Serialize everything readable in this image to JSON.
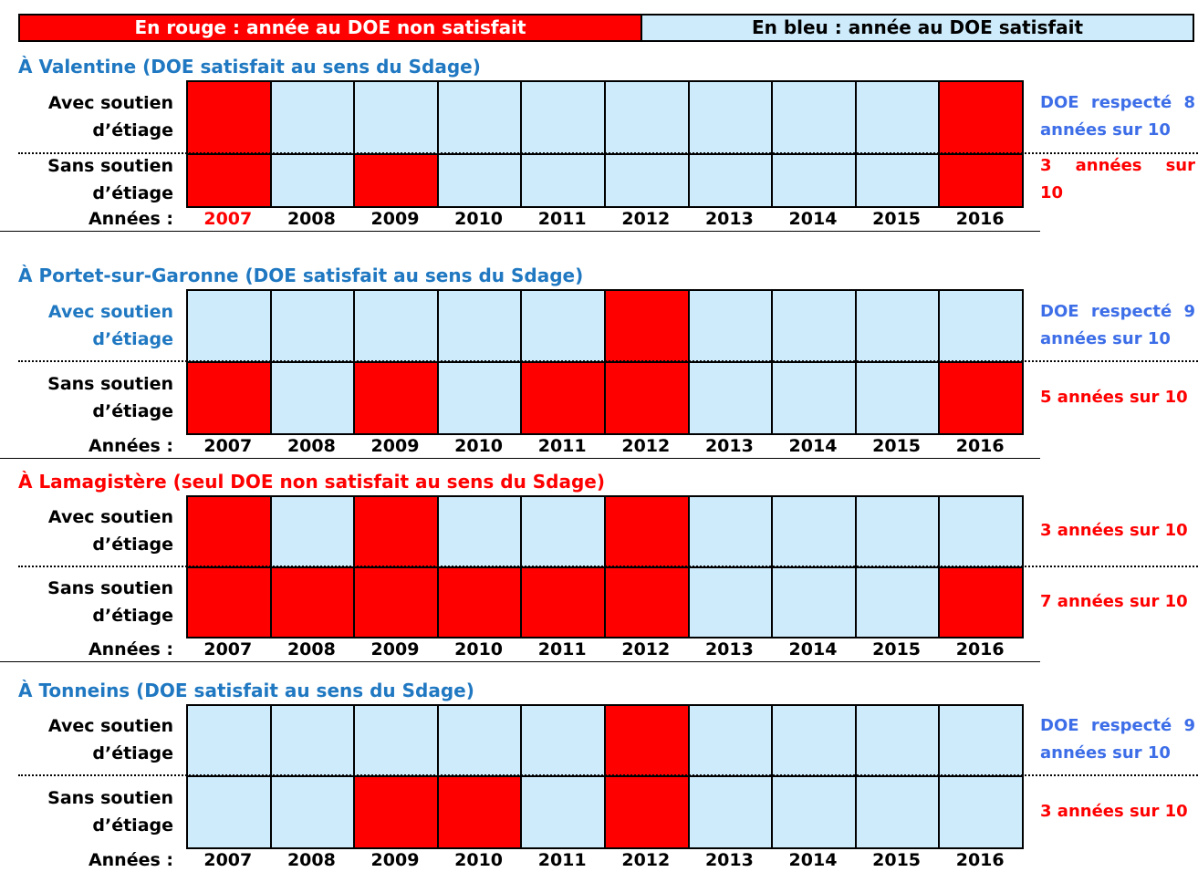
{
  "legend": {
    "red": {
      "text": "En rouge : année au DOE non satisfait",
      "color": "#ff0000",
      "text_color": "#ffffff"
    },
    "blue": {
      "text": "En bleu : année au DOE satisfait",
      "color": "#cdebfb",
      "text_color": "#000000"
    }
  },
  "sections": [
    {
      "title": "À Valentine (DOE satisfait au sens du Sdage)",
      "title_color": "#1f78c1",
      "rows": [
        {
          "label": [
            "Avec soutien",
            "d’étiage"
          ],
          "label_color": "#000000",
          "satisfied": [
            false,
            true,
            true,
            true,
            true,
            true,
            true,
            true,
            true,
            false
          ],
          "note": [
            "DOE respecté 8",
            "années sur 10"
          ],
          "note_color": "#3d6ee8"
        },
        {
          "label": [
            "Sans soutien",
            "d’étiage"
          ],
          "label_color": "#000000",
          "satisfied": [
            false,
            true,
            false,
            true,
            true,
            true,
            true,
            true,
            true,
            false
          ],
          "note": [
            "3 années sur",
            "10"
          ],
          "note_color": "#ff0000"
        }
      ],
      "years_label": "Années :",
      "years": [
        "2007",
        "2008",
        "2009",
        "2010",
        "2011",
        "2012",
        "2013",
        "2014",
        "2015",
        "2016"
      ],
      "year_colors": [
        "#ff0000",
        "#000000",
        "#000000",
        "#000000",
        "#000000",
        "#000000",
        "#000000",
        "#000000",
        "#000000",
        "#000000"
      ]
    },
    {
      "title": "À Portet-sur-Garonne (DOE satisfait au sens du Sdage)",
      "title_color": "#1f78c1",
      "rows": [
        {
          "label": [
            "Avec soutien",
            "d’étiage"
          ],
          "label_color": "#1f78c1",
          "satisfied": [
            true,
            true,
            true,
            true,
            true,
            false,
            true,
            true,
            true,
            true
          ],
          "note": [
            "DOE respecté 9",
            "années sur 10"
          ],
          "note_color": "#3d6ee8"
        },
        {
          "label": [
            "Sans soutien",
            "d’étiage"
          ],
          "label_color": "#000000",
          "satisfied": [
            false,
            true,
            false,
            true,
            false,
            false,
            true,
            true,
            true,
            false
          ],
          "note": [
            "5 années sur 10"
          ],
          "note_color": "#ff0000"
        }
      ],
      "years_label": "Années :",
      "years": [
        "2007",
        "2008",
        "2009",
        "2010",
        "2011",
        "2012",
        "2013",
        "2014",
        "2015",
        "2016"
      ]
    },
    {
      "title": "À Lamagistère (seul DOE non satisfait au sens du Sdage)",
      "title_color": "#ff0000",
      "rows": [
        {
          "label": [
            "Avec soutien",
            "d’étiage"
          ],
          "label_color": "#000000",
          "satisfied": [
            false,
            true,
            false,
            true,
            true,
            false,
            true,
            true,
            true,
            true
          ],
          "note": [
            "3 années sur 10"
          ],
          "note_color": "#ff0000"
        },
        {
          "label": [
            "Sans soutien",
            "d’étiage"
          ],
          "label_color": "#000000",
          "satisfied": [
            false,
            false,
            false,
            false,
            false,
            false,
            true,
            true,
            true,
            false
          ],
          "note": [
            "7 années sur 10"
          ],
          "note_color": "#ff0000"
        }
      ],
      "years_label": "Années :",
      "years": [
        "2007",
        "2008",
        "2009",
        "2010",
        "2011",
        "2012",
        "2013",
        "2014",
        "2015",
        "2016"
      ]
    },
    {
      "title": "À Tonneins (DOE satisfait au sens du Sdage)",
      "title_color": "#1f78c1",
      "rows": [
        {
          "label": [
            "Avec soutien",
            "d’étiage"
          ],
          "label_color": "#000000",
          "satisfied": [
            true,
            true,
            true,
            true,
            true,
            false,
            true,
            true,
            true,
            true
          ],
          "note": [
            "DOE respecté 9",
            "années sur 10"
          ],
          "note_color": "#3d6ee8"
        },
        {
          "label": [
            "Sans soutien",
            "d’étiage"
          ],
          "label_color": "#000000",
          "satisfied": [
            true,
            true,
            false,
            false,
            true,
            false,
            true,
            true,
            true,
            true
          ],
          "note": [
            "3 années sur 10"
          ],
          "note_color": "#ff0000"
        }
      ],
      "years_label": "Années :",
      "years": [
        "2007",
        "2008",
        "2009",
        "2010",
        "2011",
        "2012",
        "2013",
        "2014",
        "2015",
        "2016"
      ]
    }
  ]
}
